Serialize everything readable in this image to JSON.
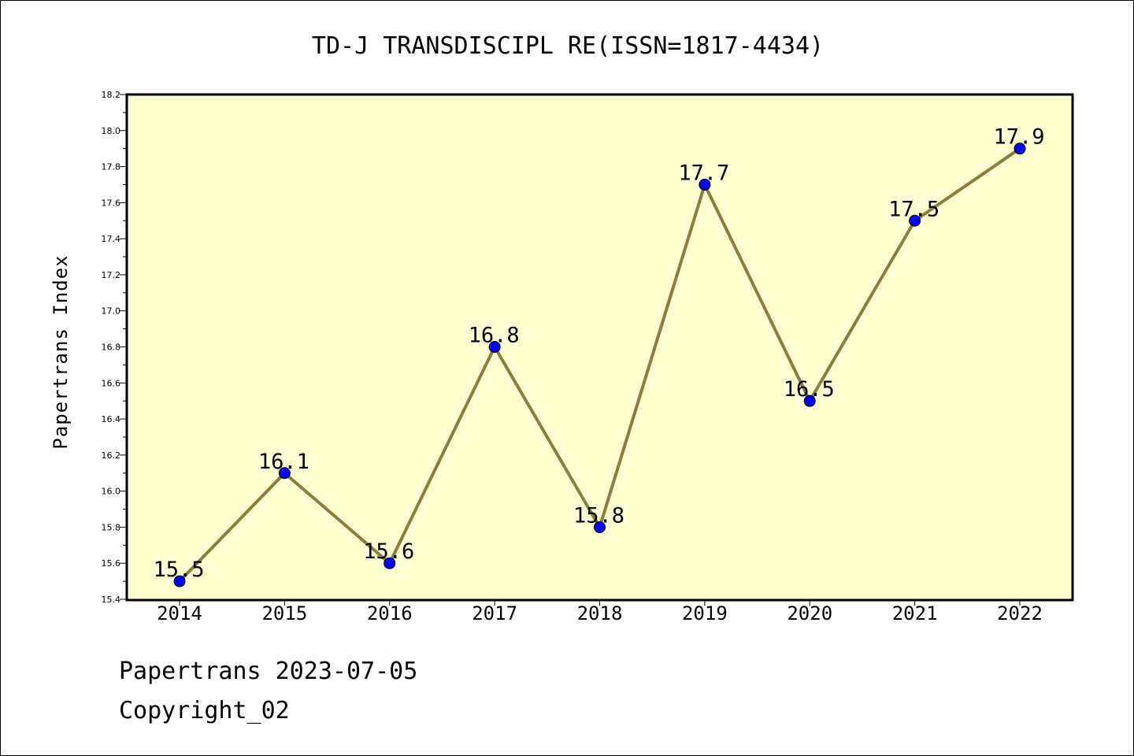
{
  "chart_data": {
    "type": "line",
    "title": "TD-J TRANSDISCIPL RE(ISSN=1817-4434)",
    "xlabel": "",
    "ylabel": "Papertrans Index",
    "categories": [
      "2014",
      "2015",
      "2016",
      "2017",
      "2018",
      "2019",
      "2020",
      "2021",
      "2022"
    ],
    "values": [
      15.5,
      16.1,
      15.6,
      16.8,
      15.8,
      17.7,
      16.5,
      17.5,
      17.9
    ],
    "data_labels": [
      "15.5",
      "16.1",
      "15.6",
      "16.8",
      "15.8",
      "17.7",
      "16.5",
      "17.5",
      "17.9"
    ],
    "ylim": [
      15.4,
      18.2
    ],
    "yticks": [
      "15.4",
      "15.6",
      "15.8",
      "16.0",
      "16.2",
      "16.4",
      "16.6",
      "16.8",
      "17.0",
      "17.2",
      "17.4",
      "17.6",
      "17.8",
      "18.0",
      "18.2"
    ],
    "grid": false,
    "legend": "none",
    "colors": {
      "line": "#8B7D3A",
      "marker": "#0000FF",
      "plot_bg": "#FFFFD2"
    }
  },
  "footer": {
    "date_line": "Papertrans 2023-07-05",
    "copyright": "Copyright_02"
  }
}
